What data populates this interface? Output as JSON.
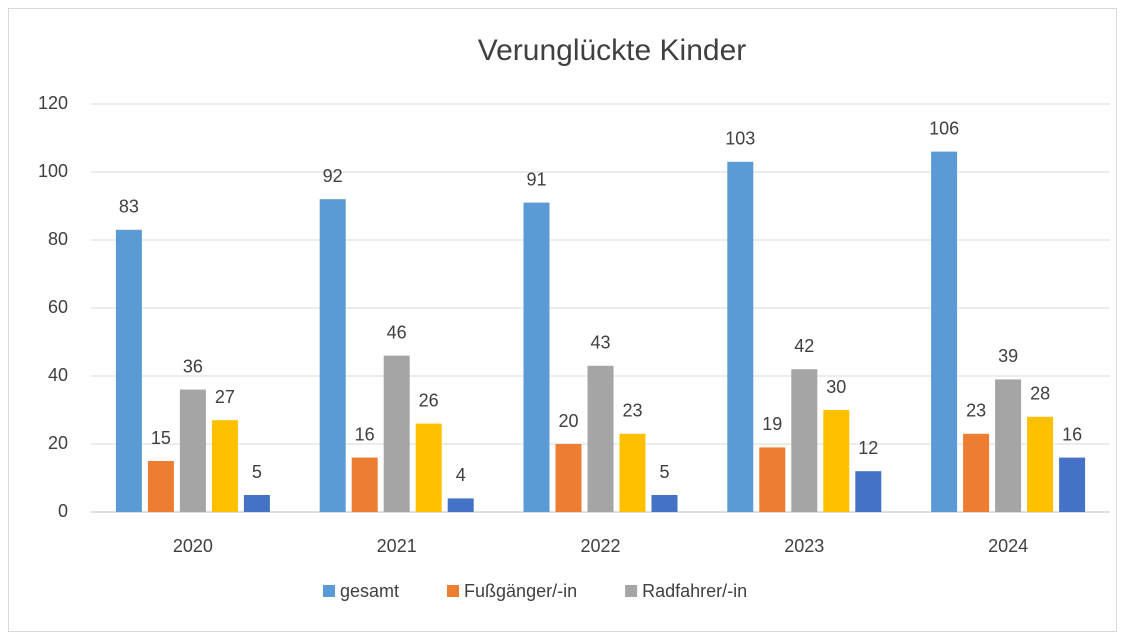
{
  "chart_data": {
    "type": "bar",
    "title": "Verunglückte Kinder",
    "categories": [
      "2020",
      "2021",
      "2022",
      "2023",
      "2024"
    ],
    "series": [
      {
        "name": "gesamt",
        "color": "#5b9bd5",
        "values": [
          83,
          92,
          91,
          103,
          106
        ]
      },
      {
        "name": "Fußgänger/-in",
        "color": "#ed7d31",
        "values": [
          15,
          16,
          20,
          19,
          23
        ]
      },
      {
        "name": "Radfahrer/-in",
        "color": "#a5a5a5",
        "values": [
          36,
          46,
          43,
          42,
          39
        ]
      },
      {
        "name": null,
        "color": "#ffc000",
        "values": [
          27,
          26,
          23,
          30,
          28
        ]
      },
      {
        "name": null,
        "color": "#4472c4",
        "values": [
          5,
          4,
          5,
          12,
          16
        ]
      }
    ],
    "ylim": [
      0,
      120
    ],
    "yticks": [
      0,
      20,
      40,
      60,
      80,
      100,
      120
    ],
    "grid": true,
    "legend": "bottom"
  }
}
